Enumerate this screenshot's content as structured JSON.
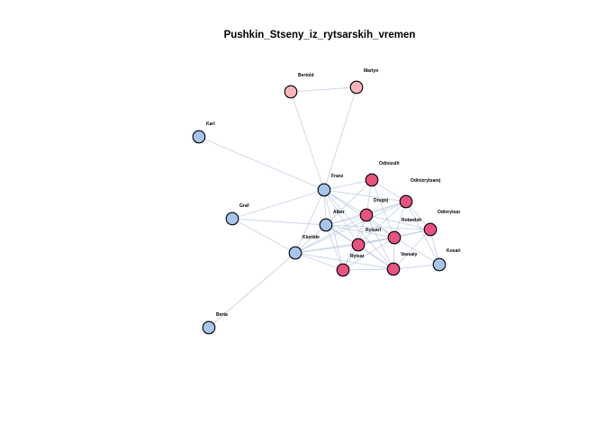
{
  "title": "Pushkin_Stseny_iz_rytsarskih_vremen",
  "colors": {
    "group_blue": "#a6c5ec",
    "group_magenta": "#e8527f",
    "group_pink": "#fbb4b9",
    "edge": "#b7c7e0",
    "node_stroke": "#000000"
  },
  "nodes": [
    {
      "id": "Bertold",
      "group": "pink"
    },
    {
      "id": "Martyn",
      "group": "pink"
    },
    {
      "id": "Karl",
      "group": "blue"
    },
    {
      "id": "Franz",
      "group": "blue"
    },
    {
      "id": "Odinizslh",
      "group": "magenta"
    },
    {
      "id": "Odinizrytsarej",
      "group": "magenta"
    },
    {
      "id": "Graf",
      "group": "blue"
    },
    {
      "id": "Drugoj",
      "group": "magenta"
    },
    {
      "id": "Alber",
      "group": "blue"
    },
    {
      "id": "Rotwelsh",
      "group": "magenta"
    },
    {
      "id": "Odinrytsar",
      "group": "magenta"
    },
    {
      "id": "Kloritde",
      "group": "blue"
    },
    {
      "id": "Rytsarl",
      "group": "magenta"
    },
    {
      "id": "Vassaly",
      "group": "magenta"
    },
    {
      "id": "Kosari",
      "group": "blue"
    },
    {
      "id": "Rytsar",
      "group": "magenta"
    },
    {
      "id": "Berta",
      "group": "blue"
    }
  ],
  "edges": [
    [
      "Bertold",
      "Martyn"
    ],
    [
      "Bertold",
      "Franz"
    ],
    [
      "Martyn",
      "Franz"
    ],
    [
      "Karl",
      "Franz"
    ],
    [
      "Franz",
      "Odinizslh"
    ],
    [
      "Franz",
      "Odinizrytsarej"
    ],
    [
      "Franz",
      "Drugoj"
    ],
    [
      "Franz",
      "Alber"
    ],
    [
      "Franz",
      "Rotwelsh"
    ],
    [
      "Franz",
      "Rytsarl"
    ],
    [
      "Franz",
      "Rytsar"
    ],
    [
      "Franz",
      "Kloritde"
    ],
    [
      "Franz",
      "Vassaly"
    ],
    [
      "Franz",
      "Graf"
    ],
    [
      "Graf",
      "Alber"
    ],
    [
      "Graf",
      "Kloritde"
    ],
    [
      "Alber",
      "Drugoj"
    ],
    [
      "Alber",
      "Rotwelsh"
    ],
    [
      "Alber",
      "Rytsarl"
    ],
    [
      "Alber",
      "Rytsar"
    ],
    [
      "Alber",
      "Vassaly"
    ],
    [
      "Alber",
      "Odinizrytsarej"
    ],
    [
      "Alber",
      "Odinizslh"
    ],
    [
      "Alber",
      "Kloritde"
    ],
    [
      "Alber",
      "Odinrytsar"
    ],
    [
      "Kloritde",
      "Drugoj"
    ],
    [
      "Kloritde",
      "Rytsarl"
    ],
    [
      "Kloritde",
      "Rytsar"
    ],
    [
      "Kloritde",
      "Rotwelsh"
    ],
    [
      "Kloritde",
      "Vassaly"
    ],
    [
      "Kloritde",
      "Odinizrytsarej"
    ],
    [
      "Kloritde",
      "Berta"
    ],
    [
      "Drugoj",
      "Odinizrytsarej"
    ],
    [
      "Drugoj",
      "Odinizslh"
    ],
    [
      "Drugoj",
      "Rotwelsh"
    ],
    [
      "Drugoj",
      "Rytsarl"
    ],
    [
      "Drugoj",
      "Rytsar"
    ],
    [
      "Drugoj",
      "Vassaly"
    ],
    [
      "Drugoj",
      "Odinrytsar"
    ],
    [
      "Rotwelsh",
      "Odinizrytsarej"
    ],
    [
      "Rotwelsh",
      "Rytsarl"
    ],
    [
      "Rotwelsh",
      "Rytsar"
    ],
    [
      "Rotwelsh",
      "Vassaly"
    ],
    [
      "Rotwelsh",
      "Odinrytsar"
    ],
    [
      "Rotwelsh",
      "Kosari"
    ],
    [
      "Rotwelsh",
      "Odinizslh"
    ],
    [
      "Rytsarl",
      "Rytsar"
    ],
    [
      "Rytsarl",
      "Vassaly"
    ],
    [
      "Rytsarl",
      "Odinizrytsarej"
    ],
    [
      "Rytsarl",
      "Odinrytsar"
    ],
    [
      "Rytsar",
      "Vassaly"
    ],
    [
      "Vassaly",
      "Odinrytsar"
    ],
    [
      "Vassaly",
      "Kosari"
    ],
    [
      "Odinrytsar",
      "Kosari"
    ],
    [
      "Odinrytsar",
      "Odinizrytsarej"
    ],
    [
      "Odinizrytsarej",
      "Kosari"
    ],
    [
      "Odinizslh",
      "Odinizrytsarej"
    ]
  ]
}
